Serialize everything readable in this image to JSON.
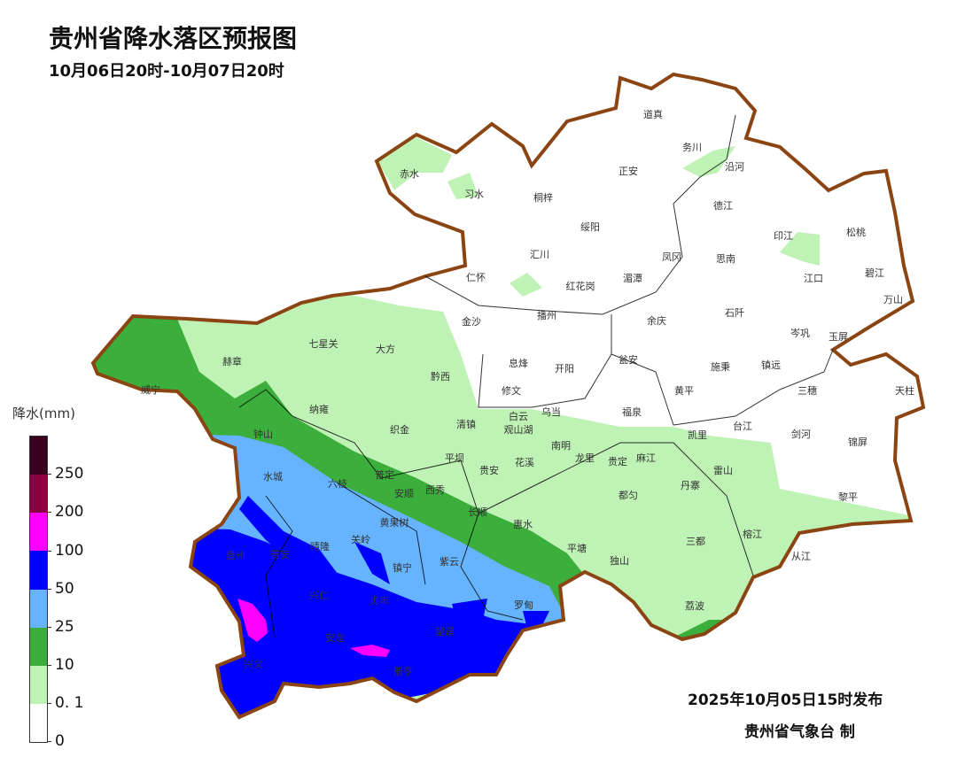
{
  "header": {
    "title": "贵州省降水落区预报图",
    "period": "10月06日20时-10月07日20时"
  },
  "legend": {
    "title": "降水(mm)",
    "ticks": [
      "250",
      "200",
      "100",
      "50",
      "25",
      "10",
      "0. 1",
      "0"
    ],
    "colors": {
      "above_250": "#3a0020",
      "200_250": "#8b0045",
      "100_200": "#ff00ff",
      "50_100": "#0000ff",
      "25_50": "#66b3ff",
      "10_25": "#3cae3c",
      "0.1_10": "#bff2b5",
      "0_0.1": "#ffffff"
    }
  },
  "map": {
    "border_color": "#8b4513",
    "counties": [
      "赤水",
      "习水",
      "道真",
      "务川",
      "沿河",
      "正安",
      "桐梓",
      "德江",
      "绥阳",
      "印江",
      "松桃",
      "汇川",
      "凤冈",
      "思南",
      "仁怀",
      "红花岗",
      "湄潭",
      "江口",
      "碧江",
      "万山",
      "金沙",
      "播州",
      "余庆",
      "石阡",
      "岑巩",
      "玉屏",
      "七星关",
      "大方",
      "赫章",
      "息烽",
      "开阳",
      "瓮安",
      "施秉",
      "镇远",
      "黔西",
      "威宁",
      "修文",
      "乌当",
      "黄平",
      "三穗",
      "天柱",
      "纳雍",
      "白云",
      "福泉",
      "清镇",
      "观山湖",
      "台江",
      "织金",
      "钟山",
      "南明",
      "凯里",
      "剑河",
      "锦屏",
      "平坝",
      "龙里",
      "贵定",
      "麻江",
      "花溪",
      "贵安",
      "雷山",
      "水城",
      "六枝",
      "普定",
      "安顺",
      "西秀",
      "都匀",
      "丹寨",
      "黎平",
      "长顺",
      "惠水",
      "黄果树",
      "榕江",
      "三都",
      "关岭",
      "晴隆",
      "普安",
      "盘州",
      "平塘",
      "从江",
      "镇宁",
      "紫云",
      "独山",
      "兴仁",
      "贞丰",
      "罗甸",
      "荔波",
      "望谟",
      "安龙",
      "兴义",
      "册亨"
    ]
  },
  "footer": {
    "issued": "2025年10月05日15时发布",
    "maker": "贵州省气象台  制"
  }
}
